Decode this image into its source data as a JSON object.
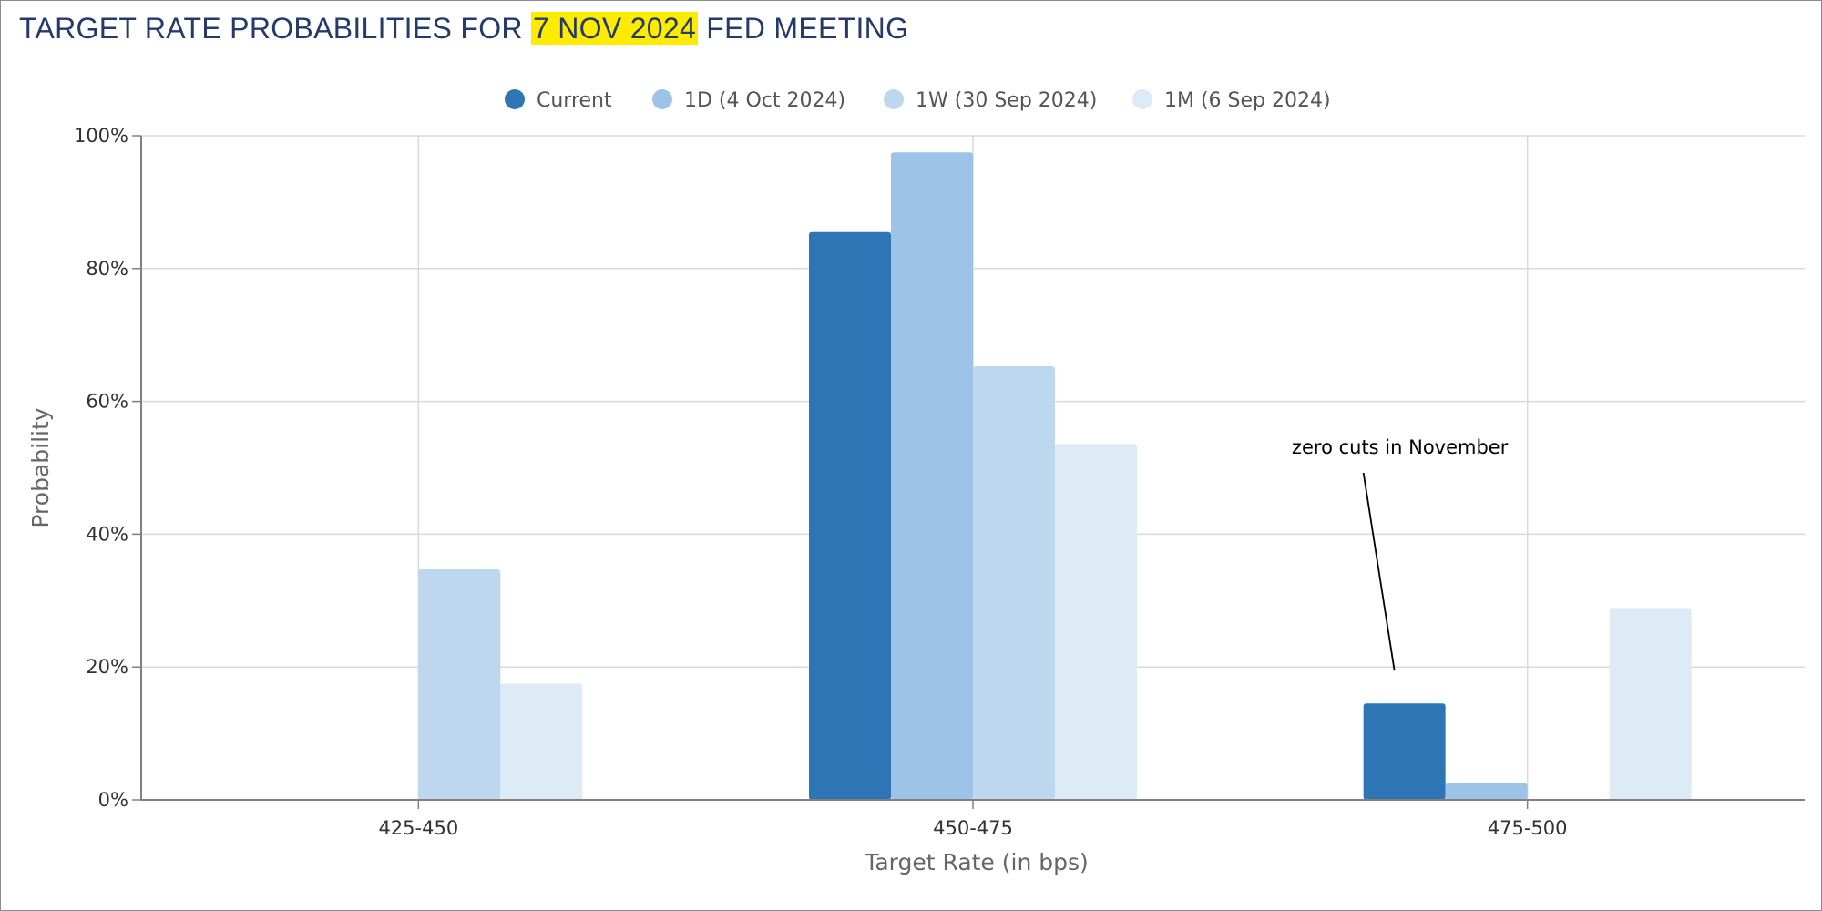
{
  "title": {
    "prefix": "TARGET RATE PROBABILITIES FOR ",
    "highlight": "7 NOV 2024",
    "suffix": " FED MEETING"
  },
  "colors": {
    "title": "#243a6b",
    "highlight": "#ffeb00",
    "grid": "#d9d9d9",
    "axis": "#808080",
    "text": "#333333",
    "axis_title": "#666666"
  },
  "chart_data": {
    "type": "bar",
    "title": "TARGET RATE PROBABILITIES FOR 7 NOV 2024 FED MEETING",
    "categories": [
      "425-450",
      "450-475",
      "475-500"
    ],
    "xlabel": "Target Rate (in bps)",
    "ylabel": "Probability",
    "ylim": [
      0,
      100
    ],
    "yticks": [
      0,
      20,
      40,
      60,
      80,
      100
    ],
    "ytick_labels": [
      "0%",
      "20%",
      "40%",
      "60%",
      "80%",
      "100%"
    ],
    "grid": true,
    "legend_position": "top-center",
    "series": [
      {
        "name": "Current",
        "color": "#2e75b6",
        "values": [
          0,
          85.5,
          14.5
        ]
      },
      {
        "name": "1D (4 Oct 2024)",
        "color": "#9dc3e6",
        "values": [
          0,
          97.5,
          2.5
        ]
      },
      {
        "name": "1W (30 Sep 2024)",
        "color": "#bdd7ee",
        "values": [
          34.7,
          65.3,
          0
        ]
      },
      {
        "name": "1M (6 Sep 2024)",
        "color": "#ddebf7",
        "values": [
          17.5,
          53.6,
          28.9
        ]
      }
    ],
    "annotations": [
      {
        "text": "zero cuts in November",
        "category": "475-500",
        "value": 20
      }
    ]
  }
}
